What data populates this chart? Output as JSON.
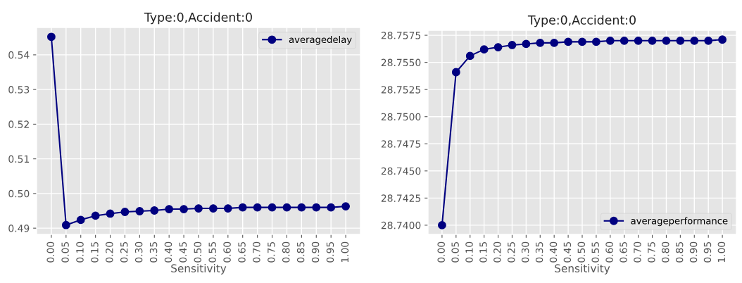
{
  "chart_data": [
    {
      "type": "line",
      "title": "Type:0,Accident:0",
      "xlabel": "Sensitivity",
      "x": [
        0.0,
        0.05,
        0.1,
        0.15,
        0.2,
        0.25,
        0.3,
        0.35,
        0.4,
        0.45,
        0.5,
        0.55,
        0.6,
        0.65,
        0.7,
        0.75,
        0.8,
        0.85,
        0.9,
        0.95,
        1.0
      ],
      "series": [
        {
          "name": "averagedelay",
          "color": "#000080",
          "values": [
            0.5452,
            0.4909,
            0.4924,
            0.4936,
            0.4942,
            0.4947,
            0.4949,
            0.4951,
            0.4955,
            0.4955,
            0.4957,
            0.4957,
            0.4957,
            0.496,
            0.496,
            0.496,
            0.496,
            0.496,
            0.496,
            0.496,
            0.4963
          ]
        }
      ],
      "xlim": [
        -0.05,
        1.05
      ],
      "ylim": [
        0.4882,
        0.5479
      ],
      "xticks": [
        {
          "value": 0.0,
          "label": "0.00"
        },
        {
          "value": 0.05,
          "label": "0.05"
        },
        {
          "value": 0.1,
          "label": "0.10"
        },
        {
          "value": 0.15,
          "label": "0.15"
        },
        {
          "value": 0.2,
          "label": "0.20"
        },
        {
          "value": 0.25,
          "label": "0.25"
        },
        {
          "value": 0.3,
          "label": "0.30"
        },
        {
          "value": 0.35,
          "label": "0.35"
        },
        {
          "value": 0.4,
          "label": "0.40"
        },
        {
          "value": 0.45,
          "label": "0.45"
        },
        {
          "value": 0.5,
          "label": "0.50"
        },
        {
          "value": 0.55,
          "label": "0.55"
        },
        {
          "value": 0.6,
          "label": "0.60"
        },
        {
          "value": 0.65,
          "label": "0.65"
        },
        {
          "value": 0.7,
          "label": "0.70"
        },
        {
          "value": 0.75,
          "label": "0.75"
        },
        {
          "value": 0.8,
          "label": "0.80"
        },
        {
          "value": 0.85,
          "label": "0.85"
        },
        {
          "value": 0.9,
          "label": "0.90"
        },
        {
          "value": 0.95,
          "label": "0.95"
        },
        {
          "value": 1.0,
          "label": "1.00"
        }
      ],
      "yticks": [
        0.49,
        {
          "value": 0.5,
          "label": "0.50"
        },
        0.51,
        0.52,
        0.53,
        0.54
      ],
      "grid": true,
      "legend": "top right",
      "marker": "circle",
      "line_style": "solid"
    },
    {
      "type": "line",
      "title": "Type:0,Accident:0",
      "xlabel": "Sensitivity",
      "x": [
        0.0,
        0.05,
        0.1,
        0.15,
        0.2,
        0.25,
        0.3,
        0.35,
        0.4,
        0.45,
        0.5,
        0.55,
        0.6,
        0.65,
        0.7,
        0.75,
        0.8,
        0.85,
        0.9,
        0.95,
        1.0
      ],
      "series": [
        {
          "name": "averageperformance",
          "color": "#000080",
          "values": [
            28.74,
            28.7541,
            28.7556,
            28.7562,
            28.7564,
            28.7566,
            28.7567,
            28.7568,
            28.7568,
            28.7569,
            28.7569,
            28.7569,
            28.757,
            28.757,
            28.757,
            28.757,
            28.757,
            28.757,
            28.757,
            28.757,
            28.7571
          ]
        }
      ],
      "xlim": [
        -0.05,
        1.05
      ],
      "ylim": [
        28.73915,
        28.75796
      ],
      "xticks": [
        {
          "value": 0.0,
          "label": "0.00"
        },
        {
          "value": 0.05,
          "label": "0.05"
        },
        {
          "value": 0.1,
          "label": "0.10"
        },
        {
          "value": 0.15,
          "label": "0.15"
        },
        {
          "value": 0.2,
          "label": "0.20"
        },
        {
          "value": 0.25,
          "label": "0.25"
        },
        {
          "value": 0.3,
          "label": "0.30"
        },
        {
          "value": 0.35,
          "label": "0.35"
        },
        {
          "value": 0.4,
          "label": "0.40"
        },
        {
          "value": 0.45,
          "label": "0.45"
        },
        {
          "value": 0.5,
          "label": "0.50"
        },
        {
          "value": 0.55,
          "label": "0.55"
        },
        {
          "value": 0.6,
          "label": "0.60"
        },
        {
          "value": 0.65,
          "label": "0.65"
        },
        {
          "value": 0.7,
          "label": "0.70"
        },
        {
          "value": 0.75,
          "label": "0.75"
        },
        {
          "value": 0.8,
          "label": "0.80"
        },
        {
          "value": 0.85,
          "label": "0.85"
        },
        {
          "value": 0.9,
          "label": "0.90"
        },
        {
          "value": 0.95,
          "label": "0.95"
        },
        {
          "value": 1.0,
          "label": "1.00"
        }
      ],
      "yticks": [
        {
          "value": 28.74,
          "label": "28.7400"
        },
        28.7425,
        {
          "value": 28.745,
          "label": "28.7450"
        },
        28.7475,
        {
          "value": 28.75,
          "label": "28.7500"
        },
        28.7525,
        {
          "value": 28.755,
          "label": "28.7550"
        },
        28.7575
      ],
      "grid": true,
      "legend": "bottom right",
      "marker": "circle",
      "line_style": "solid"
    }
  ]
}
